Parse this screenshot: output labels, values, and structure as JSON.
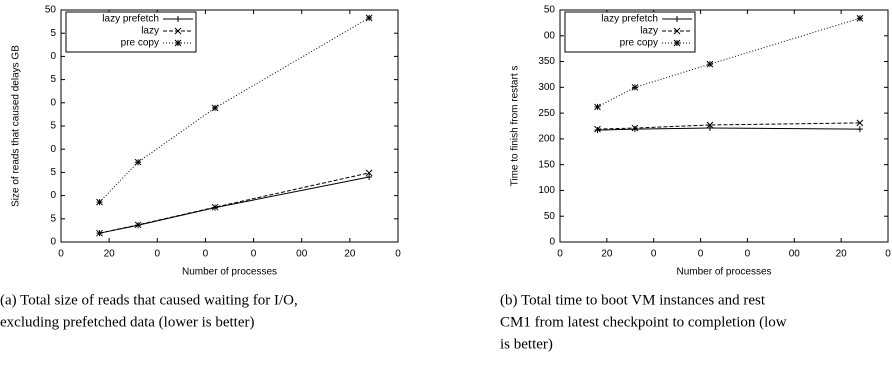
{
  "chart_data": [
    {
      "type": "line",
      "xlabel": "Number of processes",
      "ylabel": "Size of reads that caused delays  GB",
      "x": [
        16,
        32,
        64,
        128
      ],
      "xlim": [
        0,
        140
      ],
      "xticks": [
        0,
        20,
        {
          "value": 40,
          "label": "0"
        },
        {
          "value": 60,
          "label": "0"
        },
        {
          "value": 80,
          "label": "0"
        },
        {
          "value": 100,
          "label": "00"
        },
        {
          "value": 120,
          "label": "20"
        },
        {
          "value": 140,
          "label": "0"
        }
      ],
      "ylim": [
        0,
        50
      ],
      "yticks": [
        0,
        5,
        {
          "value": 10,
          "label": "0"
        },
        {
          "value": 15,
          "label": "5"
        },
        {
          "value": 20,
          "label": "0"
        },
        {
          "value": 25,
          "label": "5"
        },
        {
          "value": 30,
          "label": "0"
        },
        {
          "value": 35,
          "label": "5"
        },
        {
          "value": 40,
          "label": "0"
        },
        {
          "value": 45,
          "label": "5"
        },
        50
      ],
      "legend": "upper left",
      "series": [
        {
          "name": "lazy prefetch",
          "color": "#000000",
          "linestyle": "solid",
          "marker": "+",
          "values": [
            1.9,
            3.6,
            7.4,
            14.0
          ]
        },
        {
          "name": "lazy",
          "color": "#000000",
          "linestyle": "dashed",
          "marker": "x",
          "values": [
            1.9,
            3.7,
            7.5,
            14.9
          ]
        },
        {
          "name": "pre copy",
          "color": "#000000",
          "linestyle": "dotted",
          "marker": "*",
          "values": [
            8.6,
            17.2,
            28.9,
            48.3
          ]
        }
      ],
      "caption": [
        "(a)  Total size of reads that caused waiting for I/O,",
        "excluding prefetched data (lower is better)"
      ]
    },
    {
      "type": "line",
      "xlabel": "Number of processes",
      "ylabel": "Time to finish from restart  s",
      "x": [
        16,
        32,
        64,
        128
      ],
      "xlim": [
        0,
        140
      ],
      "xticks": [
        0,
        20,
        {
          "value": 40,
          "label": "0"
        },
        {
          "value": 60,
          "label": "0"
        },
        {
          "value": 80,
          "label": "0"
        },
        {
          "value": 100,
          "label": "00"
        },
        {
          "value": 120,
          "label": "20"
        },
        {
          "value": 140,
          "label": "0"
        }
      ],
      "ylim": [
        0,
        450
      ],
      "yticks": [
        0,
        50,
        100,
        150,
        200,
        250,
        300,
        350,
        {
          "value": 400,
          "label": "00"
        },
        {
          "value": 450,
          "label": "50"
        }
      ],
      "legend": "upper left",
      "series": [
        {
          "name": "lazy prefetch",
          "color": "#000000",
          "linestyle": "solid",
          "marker": "+",
          "values": [
            217,
            219,
            221,
            219
          ]
        },
        {
          "name": "lazy",
          "color": "#000000",
          "linestyle": "dashed",
          "marker": "x",
          "values": [
            219,
            221,
            227,
            231
          ]
        },
        {
          "name": "pre copy",
          "color": "#000000",
          "linestyle": "dotted",
          "marker": "*",
          "values": [
            262,
            300,
            345,
            434
          ]
        }
      ],
      "caption": [
        "(b)  Total time to boot VM instances and rest",
        "CM1 from latest checkpoint to completion (low",
        "is better)"
      ]
    }
  ]
}
